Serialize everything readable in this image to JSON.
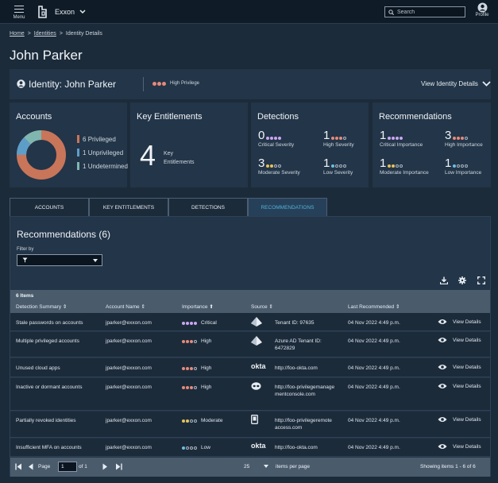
{
  "topbar": {
    "menu_label": "Menu",
    "org_name": "Exxon",
    "search_placeholder": "Search",
    "profile_label": "Profile"
  },
  "breadcrumb": [
    "Home",
    "Identities",
    "Identity Details"
  ],
  "page_title": "John Parker",
  "identity": {
    "title": "Identity: John Parker",
    "privilege": "High Privilege",
    "view_label": "View Identity Details"
  },
  "accounts_card": {
    "title": "Accounts",
    "legend": [
      {
        "count": "6",
        "label": "Privileged",
        "color": "#c8755a"
      },
      {
        "count": "1",
        "label": "Unprivileged",
        "color": "#5d9ec9"
      },
      {
        "count": "1",
        "label": "Undetermined",
        "color": "#7fb7b0"
      }
    ]
  },
  "entitlements_card": {
    "title": "Key Entitlements",
    "count": "4",
    "label": "Key Entitlements"
  },
  "detections_card": {
    "title": "Detections",
    "stats": [
      {
        "num": "0",
        "label": "Critical Severity"
      },
      {
        "num": "1",
        "label": "High Severity"
      },
      {
        "num": "3",
        "label": "Moderate Severity"
      },
      {
        "num": "1",
        "label": "Low Severity"
      }
    ]
  },
  "recommendations_card": {
    "title": "Recommendations",
    "stats": [
      {
        "num": "1",
        "label": "Critical Importance"
      },
      {
        "num": "3",
        "label": "High Importance"
      },
      {
        "num": "1",
        "label": "Moderate Importance"
      },
      {
        "num": "1",
        "label": "Low Importance"
      }
    ]
  },
  "tabs": [
    "ACCOUNTS",
    "KEY ENTITLEMENTS",
    "DETECTIONS",
    "RECOMMENDATIONS"
  ],
  "recommendations": {
    "title": "Recommendations (6)",
    "filter_label": "Filter by",
    "items_count": "6 Items",
    "columns": [
      "Detection Summary",
      "Account Name",
      "Importance",
      "Source",
      "Last Recommended"
    ],
    "view_label": "View Details",
    "rows": [
      {
        "summary": "Stale passwords on accounts",
        "account": "jparker@exxon.com",
        "importance": "Critical",
        "source": "Tenant ID: 97635",
        "source_icon": "azure-icon",
        "date": "04 Nov 2022  4:49 p.m."
      },
      {
        "summary": "Multiple privileged accounts",
        "account": "jparker@exxon.com",
        "importance": "High",
        "source": "Azure AD Tenant ID: 6472829",
        "source_icon": "azure-icon",
        "date": "04 Nov 2022  4:49 p.m."
      },
      {
        "summary": "Unused cloud apps",
        "account": "jparker@exxon.com",
        "importance": "High",
        "source": "http://foo-okta.com",
        "source_icon": "okta-logo",
        "date": "04 Nov 2022  4:49 p.m."
      },
      {
        "summary": "Inactive or dormant accounts",
        "account": "jparker@exxon.com",
        "importance": "High",
        "source": "http://foo-privilegemanagementconsole.com",
        "source_icon": "alien-icon",
        "date": "04 Nov 2022  4:49 p.m."
      },
      {
        "summary": "Partially revoked identities",
        "account": "jparker@exxon.com",
        "importance": "Moderate",
        "source": "http://foo-privilegeremoteaccess.com",
        "source_icon": "device-icon",
        "date": "04 Nov 2022  4:49 p.m."
      },
      {
        "summary": "Insufficient MFA on accounts",
        "account": "jparker@exxon.com",
        "importance": "Low",
        "source": "http://foo-okta.com",
        "source_icon": "okta-logo",
        "date": "04 Nov 2022  4:49 p.m."
      }
    ]
  },
  "pager": {
    "page_label": "Page",
    "page_value": "1",
    "of_label": "of 1",
    "per_page_value": "25",
    "per_page_label": "items per page",
    "showing": "Showing items  1 - 6 of 6"
  },
  "okta_text": "okta",
  "colors": {
    "accent": "#4fb3d6",
    "critical": "#c9a7f0",
    "high": "#e58a7a",
    "moderate": "#e6c25a",
    "low": "#6cc0e0"
  }
}
